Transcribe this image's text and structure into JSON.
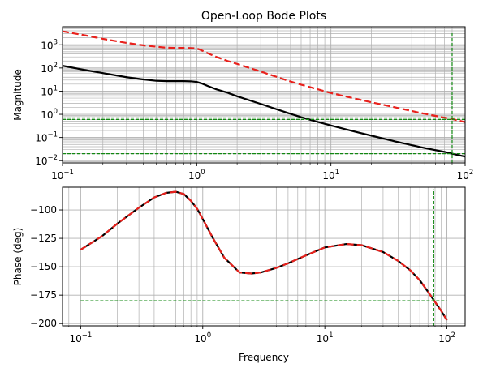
{
  "chart_data": [
    {
      "type": "line",
      "title": "Open-Loop Bode Plots",
      "xlabel": "",
      "ylabel": "Magnitude",
      "xscale": "log",
      "yscale": "log",
      "xlim": [
        0.1,
        100
      ],
      "ylim": [
        0.008,
        6000
      ],
      "grid": "both-major-minor",
      "xticks": [
        {
          "v": 0.1,
          "m": "10",
          "e": "−1"
        },
        {
          "v": 1,
          "m": "10",
          "e": "0"
        },
        {
          "v": 10,
          "m": "10",
          "e": "1"
        },
        {
          "v": 100,
          "m": "10",
          "e": "2"
        }
      ],
      "yticks": [
        {
          "v": 0.01,
          "m": "10",
          "e": "−2"
        },
        {
          "v": 0.1,
          "m": "10",
          "e": "−1"
        },
        {
          "v": 1,
          "m": "10",
          "e": "0"
        },
        {
          "v": 10,
          "m": "10",
          "e": "1"
        },
        {
          "v": 100,
          "m": "10",
          "e": "2"
        },
        {
          "v": 1000,
          "m": "10",
          "e": "3"
        }
      ],
      "series": [
        {
          "style": "solid",
          "color": "#000000",
          "x": [
            0.1,
            0.15,
            0.2,
            0.3,
            0.4,
            0.5,
            0.6,
            0.7,
            0.8,
            0.9,
            1.0,
            1.1,
            1.2,
            1.4,
            1.7,
            2,
            3,
            4,
            5,
            6,
            8,
            10,
            15,
            20,
            30,
            50,
            70,
            80,
            100
          ],
          "y": [
            125,
            80,
            60,
            40,
            32,
            28,
            27,
            27,
            27,
            26.5,
            25,
            21,
            17,
            12,
            8.5,
            6,
            2.8,
            1.6,
            1.05,
            0.75,
            0.47,
            0.33,
            0.18,
            0.12,
            0.068,
            0.035,
            0.024,
            0.02,
            0.015
          ]
        },
        {
          "style": "dashed",
          "color": "#e8211c",
          "x": [
            0.1,
            0.15,
            0.2,
            0.3,
            0.4,
            0.5,
            0.6,
            0.7,
            0.8,
            0.9,
            1.0,
            1.1,
            1.2,
            1.4,
            1.7,
            2,
            3,
            4,
            5,
            6,
            8,
            10,
            15,
            20,
            30,
            50,
            70,
            80,
            100
          ],
          "y": [
            3800,
            2500,
            1800,
            1200,
            950,
            820,
            750,
            730,
            730,
            720,
            700,
            560,
            440,
            300,
            200,
            150,
            70,
            40,
            26,
            19,
            12,
            8.3,
            4.8,
            3.3,
            2.0,
            1.05,
            0.72,
            0.63,
            0.46
          ]
        },
        {
          "style": "dashed",
          "color": "#118811",
          "x": [
            0.1,
            100
          ],
          "y": [
            0.7,
            0.7
          ]
        },
        {
          "style": "dashed",
          "color": "#118811",
          "x": [
            0.1,
            100
          ],
          "y": [
            0.6,
            0.6
          ]
        },
        {
          "style": "dashed",
          "color": "#118811",
          "x": [
            0.1,
            100
          ],
          "y": [
            0.02,
            0.02
          ]
        },
        {
          "style": "dashed",
          "color": "#118811",
          "x": [
            80,
            80
          ],
          "y": [
            0.008,
            3500
          ]
        }
      ]
    },
    {
      "type": "line",
      "title": "",
      "xlabel": "Frequency",
      "ylabel": "Phase (deg)",
      "xscale": "log",
      "yscale": "linear",
      "xlim": [
        0.071,
        141
      ],
      "ylim": [
        -202,
        -80
      ],
      "grid": "both-major-minor",
      "xticks": [
        {
          "v": 0.1,
          "m": "10",
          "e": "−1"
        },
        {
          "v": 1,
          "m": "10",
          "e": "0"
        },
        {
          "v": 10,
          "m": "10",
          "e": "1"
        },
        {
          "v": 100,
          "m": "10",
          "e": "2"
        }
      ],
      "yticks": [
        {
          "v": -100,
          "label": "−100"
        },
        {
          "v": -125,
          "label": "−125"
        },
        {
          "v": -150,
          "label": "−150"
        },
        {
          "v": -175,
          "label": "−175"
        },
        {
          "v": -200,
          "label": "−200"
        }
      ],
      "series": [
        {
          "style": "solid",
          "color": "#000000",
          "x": [
            0.1,
            0.15,
            0.2,
            0.3,
            0.4,
            0.5,
            0.6,
            0.7,
            0.8,
            0.9,
            1.0,
            1.2,
            1.5,
            2.0,
            2.5,
            3,
            4,
            5,
            7,
            10,
            15,
            20,
            30,
            40,
            50,
            60,
            70,
            80,
            90,
            100
          ],
          "y": [
            -135,
            -123,
            -112,
            -98,
            -89,
            -85,
            -84,
            -86,
            -92,
            -99,
            -108,
            -124,
            -142,
            -155,
            -156,
            -155,
            -151,
            -147,
            -140,
            -133,
            -130,
            -131,
            -137,
            -145,
            -153,
            -162,
            -172,
            -181,
            -189,
            -197
          ]
        },
        {
          "style": "dashed",
          "color": "#e8211c",
          "x": [
            0.1,
            0.15,
            0.2,
            0.3,
            0.4,
            0.5,
            0.6,
            0.7,
            0.8,
            0.9,
            1.0,
            1.2,
            1.5,
            2.0,
            2.5,
            3,
            4,
            5,
            7,
            10,
            15,
            20,
            30,
            40,
            50,
            60,
            70,
            80,
            90,
            100
          ],
          "y": [
            -135,
            -123,
            -112,
            -98,
            -89,
            -85,
            -84,
            -86,
            -92,
            -99,
            -108,
            -124,
            -142,
            -155,
            -156,
            -155,
            -151,
            -147,
            -140,
            -133,
            -130,
            -131,
            -137,
            -145,
            -153,
            -162,
            -172,
            -181,
            -189,
            -197
          ]
        },
        {
          "style": "dashed",
          "color": "#118811",
          "x": [
            0.1,
            100
          ],
          "y": [
            -180,
            -180
          ]
        },
        {
          "style": "dashed",
          "color": "#118811",
          "x": [
            78,
            78
          ],
          "y": [
            -202,
            -82
          ]
        }
      ]
    }
  ]
}
